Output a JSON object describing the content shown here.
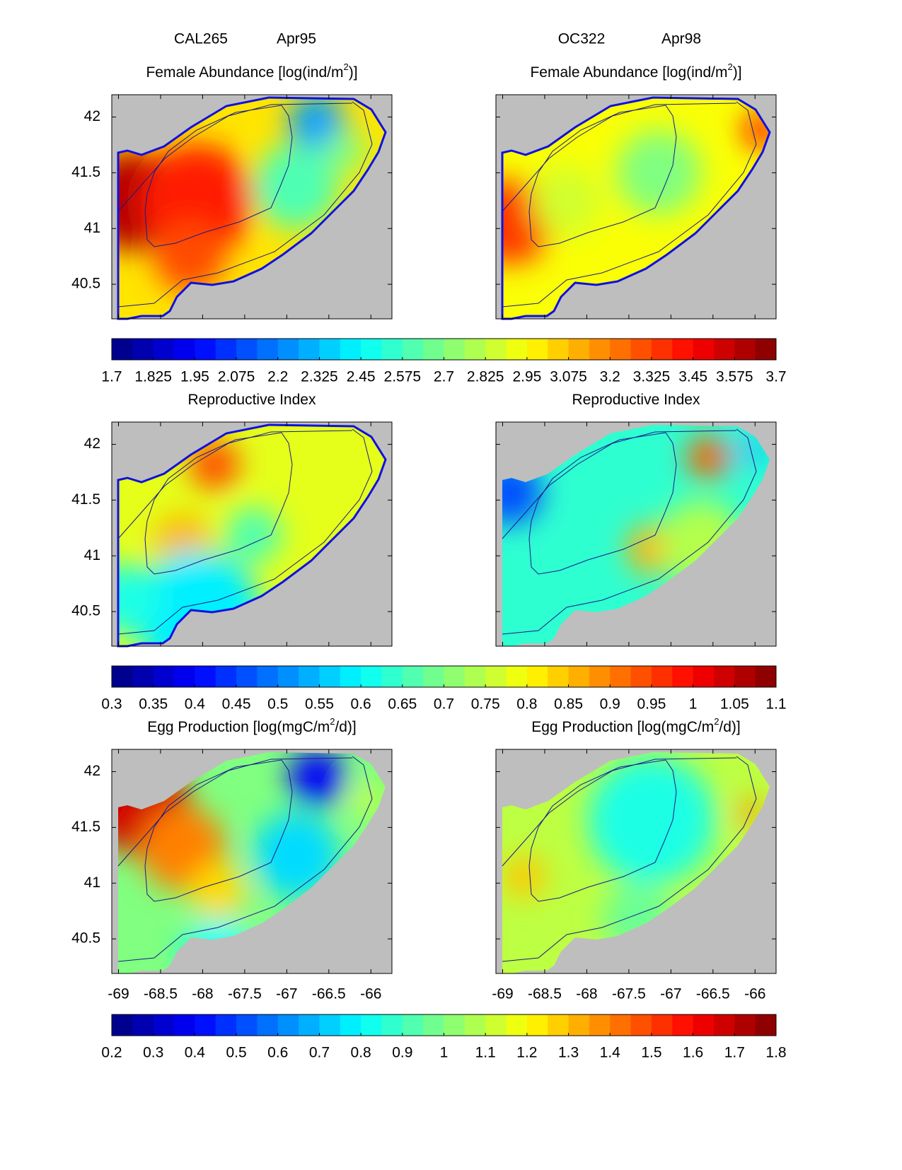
{
  "columns": [
    {
      "cruise": "CAL265",
      "date": "Apr95"
    },
    {
      "cruise": "OC322",
      "date": "Apr98"
    }
  ],
  "xlim": [
    -69.08,
    -65.75
  ],
  "ylim": [
    40.19,
    42.2
  ],
  "xticks": [
    -69,
    -68.5,
    -68,
    -67.5,
    -67,
    -66.5,
    -66
  ],
  "yticks": [
    40.5,
    41,
    41.5,
    42
  ],
  "rows": [
    {
      "title": [
        "Female Abundance [log(ind/m",
        "2",
        ")]"
      ],
      "clim": [
        1.7,
        3.7
      ],
      "colorbar_ticks": [
        1.7,
        1.825,
        1.95,
        2.075,
        2.2,
        2.325,
        2.45,
        2.575,
        2.7,
        2.825,
        2.95,
        3.075,
        3.2,
        3.325,
        3.45,
        3.575,
        3.7
      ]
    },
    {
      "title": [
        "Reproductive Index"
      ],
      "clim": [
        0.3,
        1.1
      ],
      "colorbar_ticks": [
        0.3,
        0.35,
        0.4,
        0.45,
        0.5,
        0.55,
        0.6,
        0.65,
        0.7,
        0.75,
        0.8,
        0.85,
        0.9,
        0.95,
        1,
        1.05,
        1.1
      ]
    },
    {
      "title": [
        "Egg Production [log(mgC/m",
        "2",
        "/d)]"
      ],
      "clim": [
        0.2,
        1.8
      ],
      "colorbar_ticks": [
        0.2,
        0.3,
        0.4,
        0.5,
        0.6,
        0.7,
        0.8,
        0.9,
        1,
        1.1,
        1.2,
        1.3,
        1.4,
        1.5,
        1.6,
        1.7,
        1.8
      ]
    }
  ]
}
